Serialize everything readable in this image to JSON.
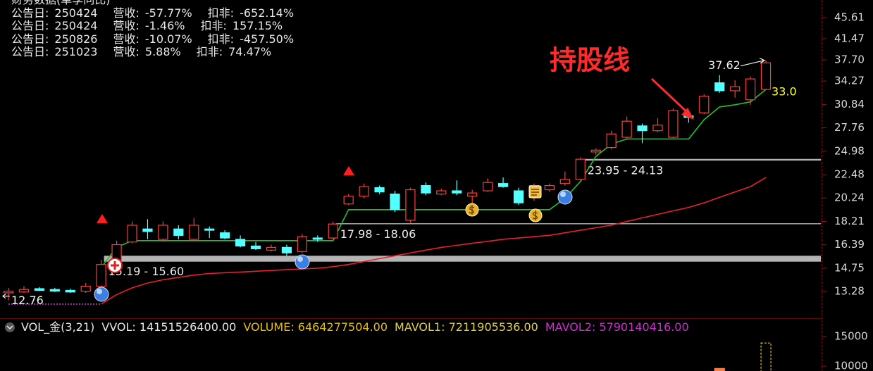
{
  "finance": {
    "title": "财务数据(单季同比)",
    "rows": [
      {
        "date_label": "公告日:",
        "date": "250424",
        "rev_label": "营收:",
        "rev": "-57.77%",
        "ded_label": "扣非:",
        "ded": "-652.14%"
      },
      {
        "date_label": "公告日:",
        "date": "250424",
        "rev_label": "营收:",
        "rev": "-1.46%",
        "ded_label": "扣非:",
        "ded": "157.15%"
      },
      {
        "date_label": "公告日:",
        "date": "250826",
        "rev_label": "营收:",
        "rev": "-10.07%",
        "ded_label": "扣非:",
        "ded": "-457.50%"
      },
      {
        "date_label": "公告日:",
        "date": "251023",
        "rev_label": "营收:",
        "rev": "5.88%",
        "ded_label": "扣非:",
        "ded": "74.47%"
      }
    ]
  },
  "chart_data": [
    {
      "type": "candlestick",
      "log_scale": true,
      "ylim": [
        11.85,
        49.37
      ],
      "yticks": [
        45.61,
        41.47,
        {
          "value": 37.7,
          "label": "37.70"
        },
        34.27,
        30.84,
        27.76,
        24.98,
        22.48,
        20.24,
        18.21,
        16.39,
        14.75,
        13.28
      ],
      "up_color": "#ff3b3b",
      "down_color": "#54ffff",
      "open": [
        13.2,
        13.25,
        13.45,
        13.4,
        13.35,
        13.3,
        13.6,
        15.2,
        16.6,
        17.6,
        16.8,
        17.6,
        16.8,
        17.6,
        17.3,
        16.8,
        16.3,
        16.0,
        16.2,
        15.9,
        16.9,
        16.9,
        19.7,
        20.4,
        21.2,
        20.6,
        18.3,
        21.4,
        20.6,
        20.9,
        20.4,
        20.9,
        21.6,
        20.9,
        20.3,
        21.0,
        21.6,
        22.0,
        24.9,
        25.4,
        26.6,
        28.0,
        27.4,
        26.6,
        29.3,
        29.7,
        34.0,
        32.8,
        31.5,
        33.0
      ],
      "high": [
        13.5,
        13.6,
        13.55,
        13.5,
        13.45,
        13.8,
        15.3,
        16.7,
        18.2,
        18.4,
        18.2,
        17.9,
        18.5,
        17.8,
        17.5,
        17.1,
        16.6,
        16.4,
        16.4,
        17.2,
        17.1,
        18.2,
        20.6,
        21.6,
        21.4,
        20.9,
        21.2,
        21.7,
        21.1,
        21.9,
        21.0,
        22.1,
        22.2,
        21.2,
        21.6,
        21.6,
        22.8,
        24.3,
        25.3,
        27.4,
        29.2,
        28.3,
        29.0,
        30.3,
        30.0,
        32.3,
        35.2,
        34.4,
        35.0,
        37.62
      ],
      "low": [
        12.76,
        13.2,
        13.3,
        13.25,
        13.2,
        13.2,
        13.5,
        15.1,
        16.5,
        16.8,
        16.6,
        16.8,
        16.7,
        16.9,
        16.8,
        16.2,
        16.0,
        15.9,
        15.6,
        15.8,
        16.6,
        16.8,
        19.6,
        20.2,
        20.6,
        19.0,
        18.1,
        20.5,
        20.5,
        20.5,
        19.3,
        20.8,
        21.2,
        19.6,
        20.0,
        20.8,
        21.4,
        21.9,
        24.6,
        25.2,
        26.4,
        25.9,
        27.2,
        26.5,
        28.4,
        29.5,
        32.5,
        31.8,
        30.8,
        32.9
      ],
      "close": [
        13.3,
        13.4,
        13.35,
        13.3,
        13.25,
        13.6,
        15.0,
        16.4,
        17.9,
        17.4,
        17.9,
        17.1,
        17.9,
        17.5,
        16.9,
        16.3,
        16.1,
        16.2,
        15.8,
        17.0,
        16.8,
        18.0,
        20.4,
        21.3,
        20.8,
        19.2,
        21.0,
        20.7,
        20.9,
        20.7,
        20.7,
        21.7,
        21.3,
        19.8,
        21.4,
        21.4,
        22.0,
        24.1,
        25.1,
        27.0,
        28.6,
        27.4,
        28.1,
        30.0,
        29.1,
        32.0,
        32.8,
        33.4,
        34.6,
        37.2
      ],
      "lines": [
        {
          "color": "#22c02c",
          "label_color": "#ffff33",
          "values": [
            null,
            null,
            null,
            null,
            null,
            null,
            14.8,
            16.2,
            16.7,
            16.7,
            16.7,
            16.7,
            16.7,
            16.7,
            16.7,
            16.7,
            16.7,
            16.7,
            16.7,
            16.7,
            16.7,
            16.7,
            19.2,
            19.2,
            19.2,
            19.2,
            19.2,
            19.2,
            19.2,
            19.2,
            19.2,
            19.2,
            19.2,
            19.2,
            19.2,
            19.2,
            20.2,
            21.8,
            24.4,
            25.8,
            26.4,
            26.4,
            26.4,
            26.4,
            26.4,
            28.8,
            30.5,
            30.8,
            31.2,
            33.0
          ],
          "value_labels": [
            null,
            null,
            null,
            null,
            null,
            null,
            null,
            null,
            null,
            null,
            null,
            null,
            null,
            null,
            null,
            null,
            null,
            null,
            null,
            null,
            null,
            null,
            null,
            null,
            null,
            null,
            null,
            null,
            null,
            null,
            null,
            null,
            null,
            null,
            null,
            null,
            null,
            null,
            null,
            null,
            null,
            null,
            null,
            null,
            null,
            null,
            null,
            null,
            null,
            "33.0"
          ]
        },
        {
          "color": "#e8202a",
          "values": [
            null,
            null,
            null,
            null,
            null,
            null,
            12.55,
            13.1,
            13.5,
            13.8,
            14.0,
            14.15,
            14.3,
            14.4,
            14.45,
            14.5,
            14.55,
            14.6,
            14.65,
            14.7,
            14.75,
            14.85,
            15.0,
            15.2,
            15.4,
            15.6,
            15.8,
            16.0,
            16.2,
            16.35,
            16.5,
            16.65,
            16.8,
            16.9,
            17.0,
            17.1,
            17.3,
            17.5,
            17.7,
            17.9,
            18.2,
            18.5,
            18.8,
            19.1,
            19.4,
            19.8,
            20.3,
            20.8,
            21.3,
            22.2
          ]
        },
        {
          "color": "#cc33cc",
          "dashed": true,
          "values": [
            12.55,
            12.55,
            12.55,
            12.55,
            12.55,
            12.55,
            12.55,
            null,
            null,
            null,
            null,
            null,
            null,
            null,
            null,
            null,
            null,
            null,
            null,
            null,
            null,
            null,
            null,
            null,
            null,
            null,
            null,
            null,
            null,
            null,
            null,
            null,
            null,
            null,
            null,
            null,
            null,
            null,
            null,
            null,
            null,
            null,
            null,
            null,
            null,
            null,
            null,
            null,
            null,
            null
          ]
        }
      ],
      "levels": [
        {
          "label": "15.19 - 15.60",
          "low": 15.19,
          "high": 15.6,
          "start": 6,
          "color": "#b4b4b4"
        },
        {
          "label": "17.98 - 18.06",
          "low": 17.98,
          "high": 18.06,
          "start": 21,
          "color": "#b4b4b4"
        },
        {
          "label": "23.95 - 24.13",
          "low": 23.95,
          "high": 24.13,
          "start": 37,
          "color": "#b4b4b4"
        }
      ],
      "annotation": {
        "text": "持股线",
        "color": "#ff2a2a"
      }
    },
    {
      "type": "bar",
      "title": "VOL_金(3,21)",
      "ylim": [
        9170,
        17740
      ],
      "yticks": [
        10000,
        15000
      ],
      "indicators": [
        {
          "text": "VVOL: 14151526400.00",
          "color": "#e6e6e6"
        },
        {
          "text": "VOLUME: 6464277504.00",
          "color": "#e8c000"
        },
        {
          "text": "MAVOL1: 7211905536.00",
          "color": "#e0d040"
        },
        {
          "text": "MAVOL2: 5790140416.00",
          "color": "#d22ad2"
        }
      ],
      "x": [
        46,
        49
      ],
      "values": [
        9600,
        13900
      ],
      "colors": [
        "#ff7a3c",
        "#e8c000"
      ]
    }
  ]
}
